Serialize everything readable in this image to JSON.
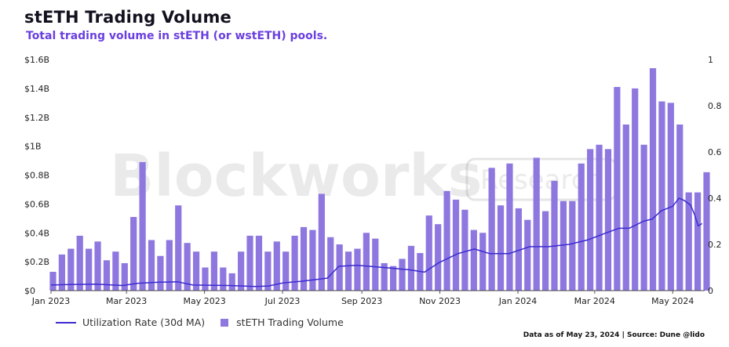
{
  "title": "stETH Trading Volume",
  "subtitle": "Total trading volume in stETH (or wstETH) pools.",
  "footer": "Data as of May 23, 2024 | Source: Dune @lido",
  "watermark": {
    "brand": "Blockworks",
    "tag": "Research"
  },
  "legend": {
    "line_label": "Utilization Rate (30d MA)",
    "bar_label": "stETH Trading Volume"
  },
  "colors": {
    "bar": "#8e78e0",
    "line": "#3c2ad0",
    "title": "#14111f",
    "subtitle": "#6a3fe0"
  },
  "chart_data": {
    "type": "bar",
    "x_range": [
      "2023-01-01",
      "2024-05-26"
    ],
    "x_ticks": [
      {
        "date": "2023-01-01",
        "label": "Jan 2023"
      },
      {
        "date": "2023-03-01",
        "label": "Mar 2023"
      },
      {
        "date": "2023-05-01",
        "label": "May 2023"
      },
      {
        "date": "2023-07-01",
        "label": "Jul 2023"
      },
      {
        "date": "2023-09-01",
        "label": "Sep 2023"
      },
      {
        "date": "2023-11-01",
        "label": "Nov 2023"
      },
      {
        "date": "2024-01-01",
        "label": "Jan 2024"
      },
      {
        "date": "2024-03-01",
        "label": "Mar 2024"
      },
      {
        "date": "2024-05-01",
        "label": "May 2024"
      }
    ],
    "y_left": {
      "min": 0,
      "max": 1.6,
      "ticks": [
        0,
        0.2,
        0.4,
        0.6,
        0.8,
        1.0,
        1.2,
        1.4,
        1.6
      ],
      "tick_labels": [
        "$0",
        "$0.2B",
        "$0.4B",
        "$0.6B",
        "$0.8B",
        "$1B",
        "$1.2B",
        "$1.4B",
        "$1.6B"
      ]
    },
    "y_right": {
      "min": 0,
      "max": 1,
      "ticks": [
        0,
        0.2,
        0.4,
        0.6,
        0.8,
        1
      ],
      "tick_labels": [
        "0",
        "0.2",
        "0.4",
        "0.6",
        "0.8",
        "1"
      ]
    },
    "series": [
      {
        "name": "stETH Trading Volume",
        "axis": "left",
        "start_date": "2023-01-01",
        "interval_days": 7,
        "values": [
          0.13,
          0.25,
          0.29,
          0.38,
          0.29,
          0.34,
          0.21,
          0.27,
          0.19,
          0.51,
          0.89,
          0.35,
          0.24,
          0.35,
          0.59,
          0.33,
          0.27,
          0.16,
          0.27,
          0.16,
          0.12,
          0.27,
          0.38,
          0.38,
          0.27,
          0.34,
          0.27,
          0.38,
          0.44,
          0.42,
          0.67,
          0.37,
          0.32,
          0.27,
          0.29,
          0.4,
          0.36,
          0.19,
          0.17,
          0.22,
          0.31,
          0.26,
          0.52,
          0.46,
          0.69,
          0.63,
          0.56,
          0.42,
          0.4,
          0.85,
          0.59,
          0.88,
          0.57,
          0.49,
          0.92,
          0.55,
          0.76,
          0.62,
          0.62,
          0.88,
          0.98,
          1.01,
          0.98,
          1.41,
          1.15,
          1.4,
          1.01,
          1.54,
          1.31,
          1.3,
          1.15,
          0.68,
          0.68,
          0.82
        ]
      },
      {
        "name": "Utilization Rate (30d MA)",
        "axis": "right",
        "type": "line",
        "points": [
          [
            "2023-01-01",
            0.024
          ],
          [
            "2023-01-15",
            0.026
          ],
          [
            "2023-02-05",
            0.028
          ],
          [
            "2023-02-26",
            0.022
          ],
          [
            "2023-03-10",
            0.032
          ],
          [
            "2023-03-25",
            0.036
          ],
          [
            "2023-04-10",
            0.038
          ],
          [
            "2023-04-22",
            0.024
          ],
          [
            "2023-05-20",
            0.022
          ],
          [
            "2023-06-10",
            0.018
          ],
          [
            "2023-06-20",
            0.02
          ],
          [
            "2023-07-01",
            0.033
          ],
          [
            "2023-07-15",
            0.04
          ],
          [
            "2023-08-05",
            0.054
          ],
          [
            "2023-08-14",
            0.105
          ],
          [
            "2023-08-28",
            0.11
          ],
          [
            "2023-09-18",
            0.1
          ],
          [
            "2023-10-08",
            0.09
          ],
          [
            "2023-10-20",
            0.08
          ],
          [
            "2023-10-31",
            0.12
          ],
          [
            "2023-11-15",
            0.16
          ],
          [
            "2023-11-28",
            0.18
          ],
          [
            "2023-12-10",
            0.16
          ],
          [
            "2023-12-25",
            0.16
          ],
          [
            "2024-01-10",
            0.19
          ],
          [
            "2024-01-25",
            0.19
          ],
          [
            "2024-02-10",
            0.2
          ],
          [
            "2024-02-25",
            0.22
          ],
          [
            "2024-03-10",
            0.25
          ],
          [
            "2024-03-20",
            0.27
          ],
          [
            "2024-03-28",
            0.27
          ],
          [
            "2024-04-08",
            0.3
          ],
          [
            "2024-04-15",
            0.31
          ],
          [
            "2024-04-22",
            0.345
          ],
          [
            "2024-05-01",
            0.365
          ],
          [
            "2024-05-06",
            0.4
          ],
          [
            "2024-05-10",
            0.39
          ],
          [
            "2024-05-15",
            0.37
          ],
          [
            "2024-05-18",
            0.33
          ],
          [
            "2024-05-21",
            0.28
          ],
          [
            "2024-05-24",
            0.29
          ]
        ]
      }
    ],
    "grid": false,
    "legend_position": "bottom-left"
  }
}
